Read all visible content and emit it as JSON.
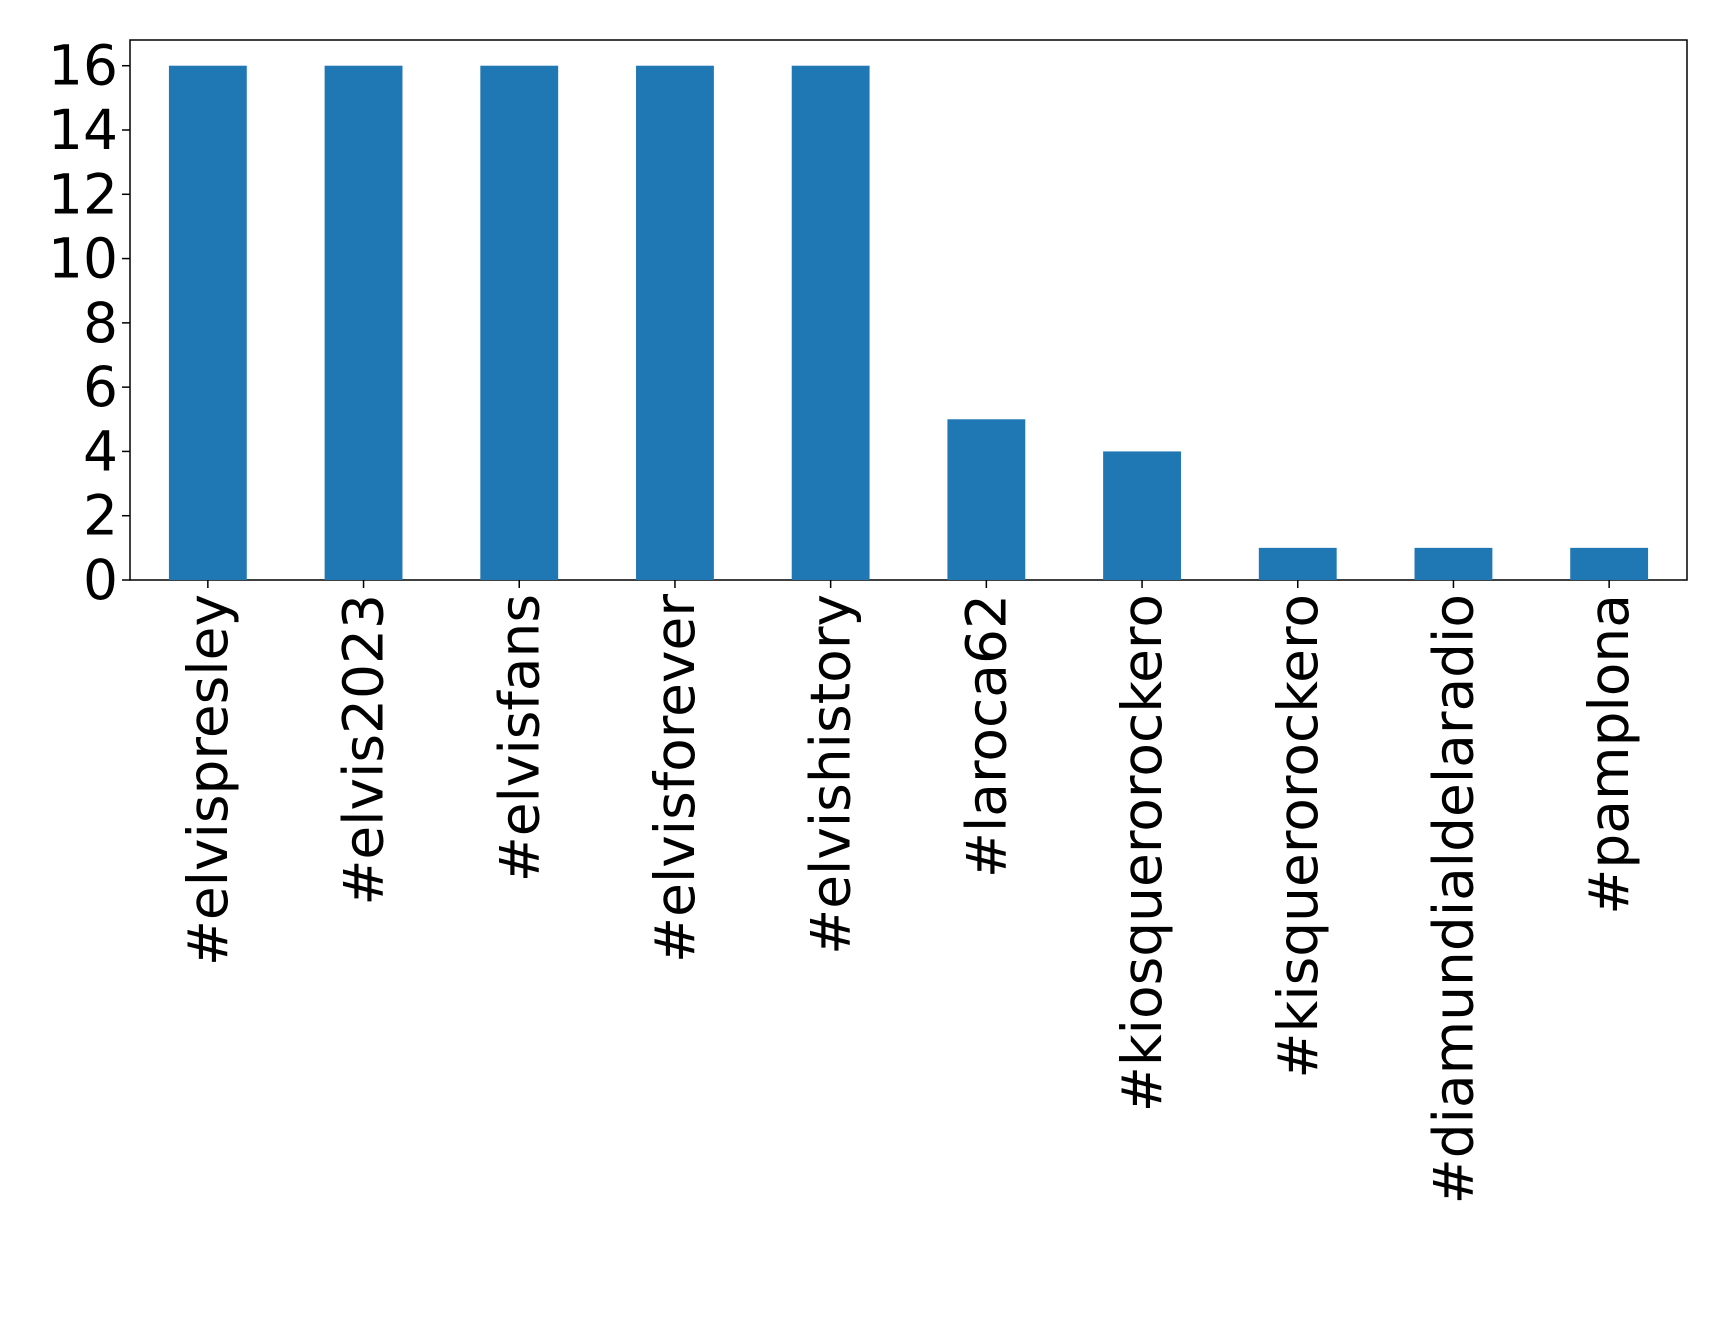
{
  "chart_data": {
    "type": "bar",
    "categories": [
      "#elvispresley",
      "#elvis2023",
      "#elvisfans",
      "#elvisforever",
      "#elvishistory",
      "#laroca62",
      "#kiosquerorockero",
      "#kisquerorockero",
      "#diamundialdelaradio",
      "#pamplona"
    ],
    "values": [
      16,
      16,
      16,
      16,
      16,
      5,
      4,
      1,
      1,
      1
    ],
    "color": "#1f77b4",
    "ylim": [
      0,
      16.8
    ],
    "yticks": [
      0,
      2,
      4,
      6,
      8,
      10,
      12,
      14,
      16
    ],
    "grid": false
  }
}
